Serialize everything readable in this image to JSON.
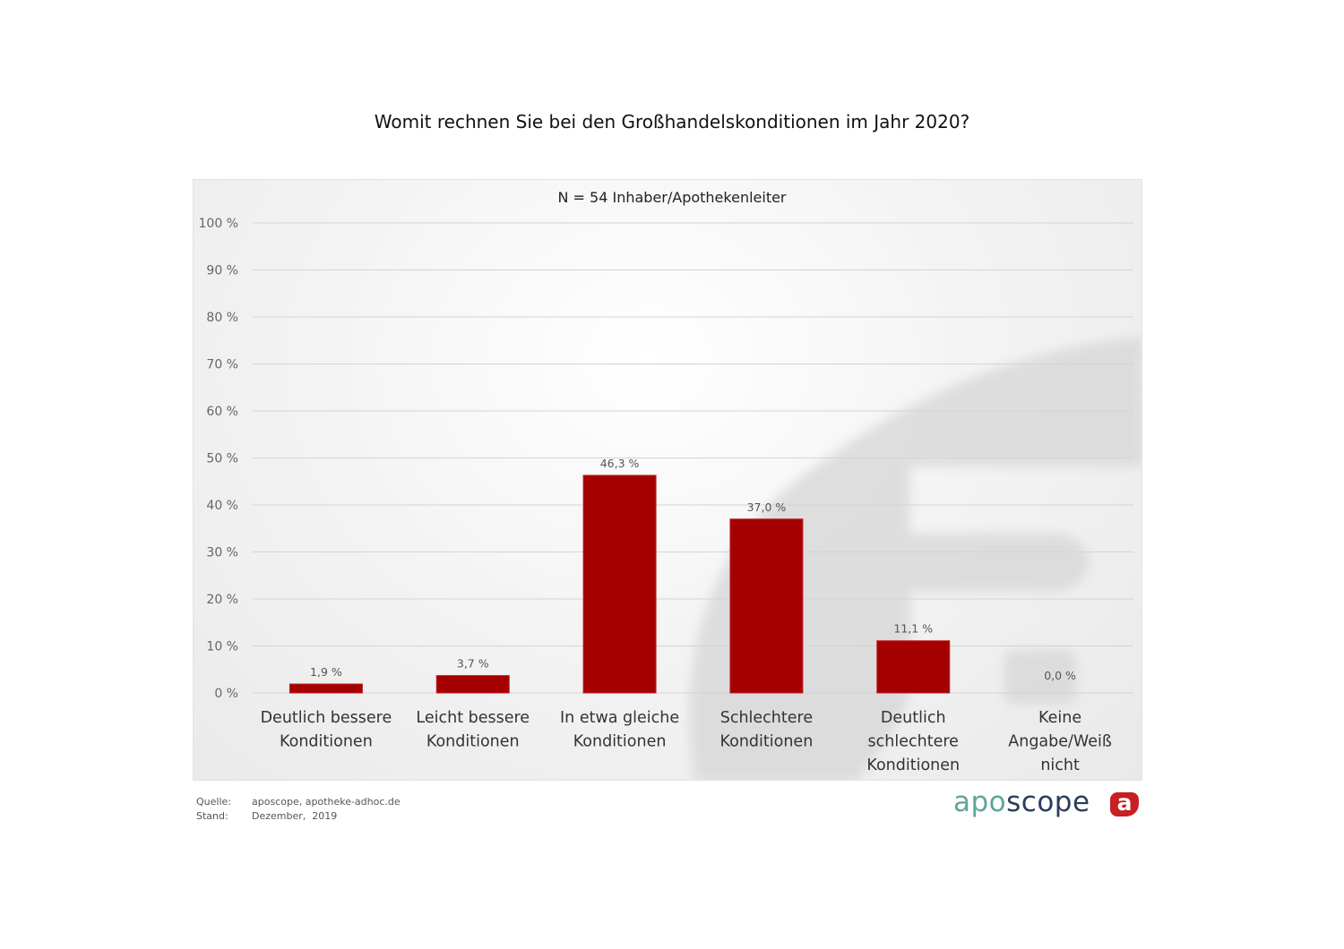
{
  "page": {
    "title": "Womit rechnen Sie bei den Großhandelskonditionen im Jahr 2020?",
    "subtitle": "N = 54 Inhaber/Apothekenleiter"
  },
  "footer": {
    "source_label": "Quelle:",
    "source_value": "aposcope, apotheke-adhoc.de",
    "date_label": "Stand:",
    "date_value": "Dezember,  2019"
  },
  "logo": {
    "part1": "apo",
    "part2": "scope",
    "badge": "a",
    "color_part1": "#5ea79a",
    "color_part2": "#2b3d5b",
    "badge_color": "#c61f24"
  },
  "chart_data": {
    "type": "bar",
    "categories": [
      [
        "Deutlich bessere",
        "Konditionen"
      ],
      [
        "Leicht bessere",
        "Konditionen"
      ],
      [
        "In etwa gleiche",
        "Konditionen"
      ],
      [
        "Schlechtere",
        "Konditionen"
      ],
      [
        "Deutlich",
        "schlechtere",
        "Konditionen"
      ],
      [
        "Keine",
        "Angabe/Weiß",
        "nicht"
      ]
    ],
    "values": [
      1.9,
      3.7,
      46.3,
      37.0,
      11.1,
      0.0
    ],
    "value_labels": [
      "1,9 %",
      "3,7 %",
      "46,3 %",
      "37,0 %",
      "11,1 %",
      "0,0 %"
    ],
    "ylim": [
      0,
      100
    ],
    "yticks": [
      0,
      10,
      20,
      30,
      40,
      50,
      60,
      70,
      80,
      90,
      100
    ],
    "ytick_labels": [
      "0 %",
      "10 %",
      "20 %",
      "30 %",
      "40 %",
      "50 %",
      "60 %",
      "70 %",
      "80 %",
      "90 %",
      "100 %"
    ],
    "bar_color": "#a50000",
    "grid": true
  }
}
